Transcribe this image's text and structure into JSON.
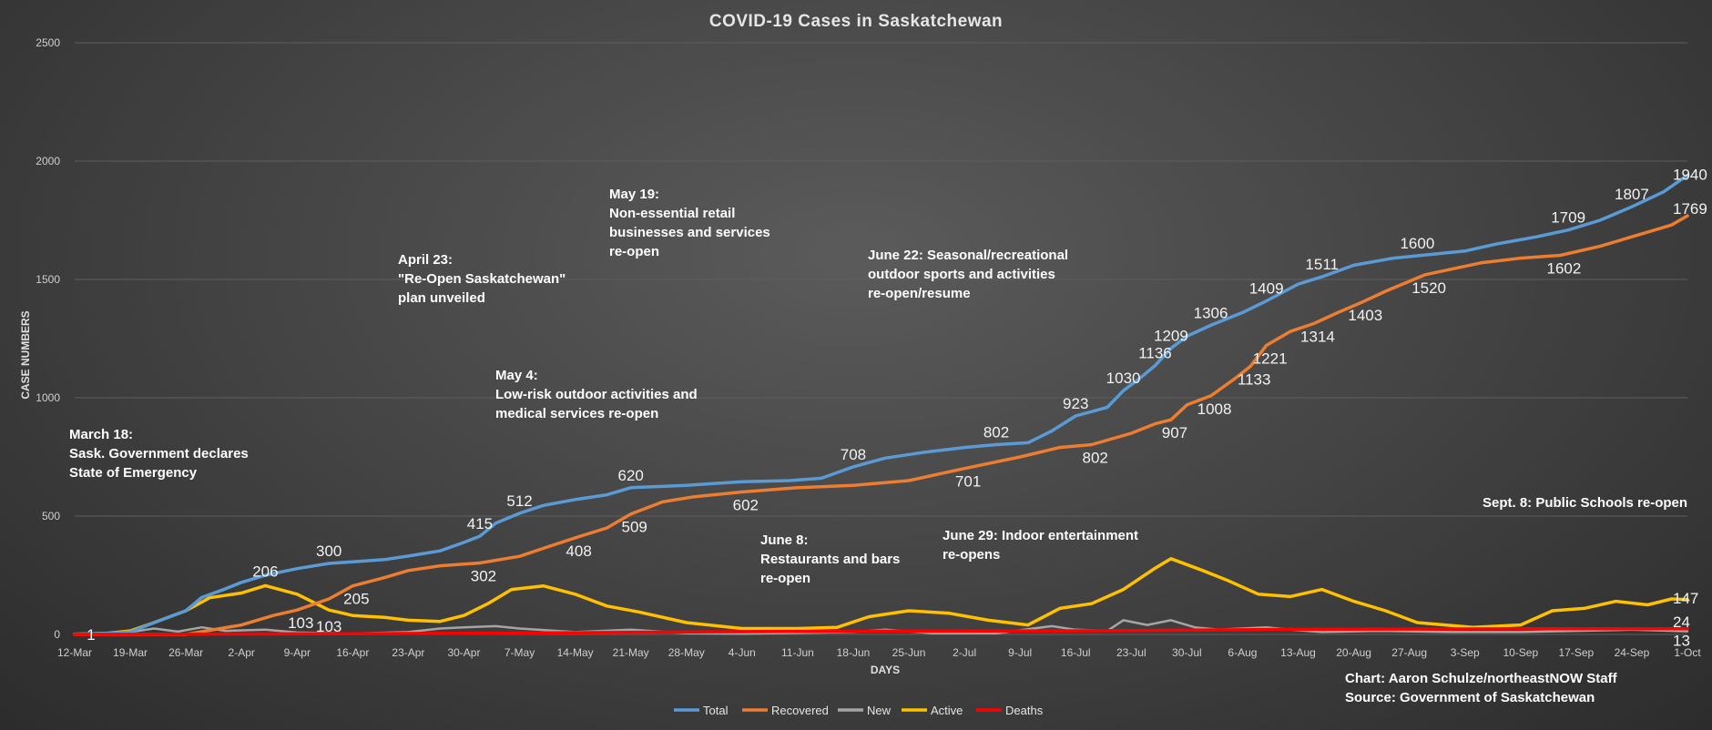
{
  "chart_data": {
    "type": "line",
    "title": "COVID-19 Cases in Saskatchewan",
    "xlabel": "DAYS",
    "ylabel": "CASE NUMBERS",
    "ylim": [
      0,
      2500
    ],
    "yticks": [
      0,
      500,
      1000,
      1500,
      2000,
      2500
    ],
    "xlim": [
      "2020-03-12",
      "2020-10-01"
    ],
    "xticks": [
      "12-Mar",
      "19-Mar",
      "26-Mar",
      "2-Apr",
      "9-Apr",
      "16-Apr",
      "23-Apr",
      "30-Apr",
      "7-May",
      "14-May",
      "21-May",
      "28-May",
      "4-Jun",
      "11-Jun",
      "18-Jun",
      "25-Jun",
      "2-Jul",
      "9-Jul",
      "16-Jul",
      "23-Jul",
      "30-Jul",
      "6-Aug",
      "13-Aug",
      "20-Aug",
      "27-Aug",
      "3-Sep",
      "10-Sep",
      "17-Sep",
      "24-Sep",
      "1-Oct"
    ],
    "grid": true,
    "legend_position": "bottom",
    "series": [
      {
        "name": "Total",
        "color": "#5b9bd5",
        "points": [
          [
            "2020-03-12",
            1
          ],
          [
            "2020-03-16",
            5
          ],
          [
            "2020-03-19",
            10
          ],
          [
            "2020-03-22",
            50
          ],
          [
            "2020-03-26",
            100
          ],
          [
            "2020-03-28",
            156
          ],
          [
            "2020-03-31",
            193
          ],
          [
            "2020-04-02",
            220
          ],
          [
            "2020-04-05",
            250
          ],
          [
            "2020-04-09",
            278
          ],
          [
            "2020-04-13",
            300
          ],
          [
            "2020-04-16",
            307
          ],
          [
            "2020-04-20",
            316
          ],
          [
            "2020-04-23",
            331
          ],
          [
            "2020-04-27",
            353
          ],
          [
            "2020-04-30",
            389
          ],
          [
            "2020-05-02",
            415
          ],
          [
            "2020-05-04",
            470
          ],
          [
            "2020-05-07",
            512
          ],
          [
            "2020-05-10",
            545
          ],
          [
            "2020-05-14",
            570
          ],
          [
            "2020-05-18",
            590
          ],
          [
            "2020-05-21",
            620
          ],
          [
            "2020-05-28",
            630
          ],
          [
            "2020-06-04",
            645
          ],
          [
            "2020-06-10",
            650
          ],
          [
            "2020-06-14",
            660
          ],
          [
            "2020-06-18",
            708
          ],
          [
            "2020-06-22",
            745
          ],
          [
            "2020-06-27",
            770
          ],
          [
            "2020-07-02",
            790
          ],
          [
            "2020-07-06",
            802
          ],
          [
            "2020-07-10",
            810
          ],
          [
            "2020-07-13",
            860
          ],
          [
            "2020-07-16",
            923
          ],
          [
            "2020-07-20",
            960
          ],
          [
            "2020-07-22",
            1030
          ],
          [
            "2020-07-24",
            1080
          ],
          [
            "2020-07-26",
            1136
          ],
          [
            "2020-07-28",
            1209
          ],
          [
            "2020-07-30",
            1260
          ],
          [
            "2020-08-02",
            1306
          ],
          [
            "2020-08-06",
            1360
          ],
          [
            "2020-08-09",
            1409
          ],
          [
            "2020-08-13",
            1480
          ],
          [
            "2020-08-16",
            1511
          ],
          [
            "2020-08-20",
            1560
          ],
          [
            "2020-08-25",
            1590
          ],
          [
            "2020-08-28",
            1600
          ],
          [
            "2020-09-03",
            1620
          ],
          [
            "2020-09-07",
            1650
          ],
          [
            "2020-09-12",
            1680
          ],
          [
            "2020-09-16",
            1709
          ],
          [
            "2020-09-20",
            1750
          ],
          [
            "2020-09-24",
            1807
          ],
          [
            "2020-09-28",
            1870
          ],
          [
            "2020-10-01",
            1940
          ]
        ],
        "labels": [
          [
            "2020-03-12",
            1
          ],
          [
            "2020-04-13",
            300
          ],
          [
            "2020-05-02",
            415
          ],
          [
            "2020-05-07",
            512
          ],
          [
            "2020-05-21",
            620
          ],
          [
            "2020-06-18",
            708
          ],
          [
            "2020-07-06",
            802
          ],
          [
            "2020-07-16",
            923
          ],
          [
            "2020-07-22",
            1030
          ],
          [
            "2020-07-26",
            1136
          ],
          [
            "2020-07-28",
            1209
          ],
          [
            "2020-08-02",
            1306
          ],
          [
            "2020-08-09",
            1409
          ],
          [
            "2020-08-16",
            1511
          ],
          [
            "2020-08-28",
            1600
          ],
          [
            "2020-09-16",
            1709
          ],
          [
            "2020-09-24",
            1807
          ],
          [
            "2020-10-01",
            1940
          ]
        ]
      },
      {
        "name": "Recovered",
        "color": "#ed7d31",
        "points": [
          [
            "2020-03-12",
            0
          ],
          [
            "2020-03-26",
            0
          ],
          [
            "2020-04-02",
            40
          ],
          [
            "2020-04-06",
            80
          ],
          [
            "2020-04-09",
            103
          ],
          [
            "2020-04-13",
            150
          ],
          [
            "2020-04-16",
            205
          ],
          [
            "2020-04-20",
            240
          ],
          [
            "2020-04-23",
            270
          ],
          [
            "2020-04-27",
            290
          ],
          [
            "2020-05-02",
            302
          ],
          [
            "2020-05-07",
            330
          ],
          [
            "2020-05-11",
            375
          ],
          [
            "2020-05-14",
            408
          ],
          [
            "2020-05-18",
            450
          ],
          [
            "2020-05-21",
            509
          ],
          [
            "2020-05-25",
            560
          ],
          [
            "2020-05-29",
            582
          ],
          [
            "2020-06-04",
            602
          ],
          [
            "2020-06-11",
            620
          ],
          [
            "2020-06-18",
            630
          ],
          [
            "2020-06-25",
            650
          ],
          [
            "2020-07-02",
            701
          ],
          [
            "2020-07-09",
            750
          ],
          [
            "2020-07-14",
            790
          ],
          [
            "2020-07-18",
            802
          ],
          [
            "2020-07-23",
            850
          ],
          [
            "2020-07-26",
            890
          ],
          [
            "2020-07-28",
            907
          ],
          [
            "2020-07-30",
            970
          ],
          [
            "2020-08-02",
            1008
          ],
          [
            "2020-08-05",
            1080
          ],
          [
            "2020-08-07",
            1133
          ],
          [
            "2020-08-09",
            1221
          ],
          [
            "2020-08-12",
            1280
          ],
          [
            "2020-08-15",
            1314
          ],
          [
            "2020-08-18",
            1360
          ],
          [
            "2020-08-21",
            1403
          ],
          [
            "2020-08-24",
            1450
          ],
          [
            "2020-08-29",
            1520
          ],
          [
            "2020-09-05",
            1570
          ],
          [
            "2020-09-10",
            1590
          ],
          [
            "2020-09-15",
            1602
          ],
          [
            "2020-09-20",
            1640
          ],
          [
            "2020-09-25",
            1690
          ],
          [
            "2020-09-29",
            1730
          ],
          [
            "2020-10-01",
            1769
          ]
        ],
        "labels": [
          [
            "2020-04-09",
            103
          ],
          [
            "2020-04-16",
            205
          ],
          [
            "2020-05-02",
            302
          ],
          [
            "2020-05-14",
            408
          ],
          [
            "2020-05-21",
            509
          ],
          [
            "2020-06-04",
            602
          ],
          [
            "2020-07-02",
            701
          ],
          [
            "2020-07-18",
            802
          ],
          [
            "2020-07-28",
            907
          ],
          [
            "2020-08-02",
            1008
          ],
          [
            "2020-08-07",
            1133
          ],
          [
            "2020-08-09",
            1221
          ],
          [
            "2020-08-15",
            1314
          ],
          [
            "2020-08-21",
            1403
          ],
          [
            "2020-08-29",
            1520
          ],
          [
            "2020-09-15",
            1602
          ],
          [
            "2020-10-01",
            1769
          ]
        ]
      },
      {
        "name": "New",
        "color": "#a5a5a5",
        "points": [
          [
            "2020-03-12",
            1
          ],
          [
            "2020-03-18",
            5
          ],
          [
            "2020-03-22",
            25
          ],
          [
            "2020-03-25",
            12
          ],
          [
            "2020-03-28",
            30
          ],
          [
            "2020-03-31",
            15
          ],
          [
            "2020-04-05",
            20
          ],
          [
            "2020-04-09",
            8
          ],
          [
            "2020-04-16",
            4
          ],
          [
            "2020-04-23",
            10
          ],
          [
            "2020-04-27",
            25
          ],
          [
            "2020-04-30",
            30
          ],
          [
            "2020-05-04",
            35
          ],
          [
            "2020-05-07",
            25
          ],
          [
            "2020-05-14",
            10
          ],
          [
            "2020-05-21",
            20
          ],
          [
            "2020-05-28",
            5
          ],
          [
            "2020-06-04",
            3
          ],
          [
            "2020-06-18",
            10
          ],
          [
            "2020-06-22",
            20
          ],
          [
            "2020-06-28",
            5
          ],
          [
            "2020-07-06",
            5
          ],
          [
            "2020-07-13",
            35
          ],
          [
            "2020-07-16",
            20
          ],
          [
            "2020-07-20",
            15
          ],
          [
            "2020-07-22",
            60
          ],
          [
            "2020-07-25",
            40
          ],
          [
            "2020-07-28",
            60
          ],
          [
            "2020-07-31",
            30
          ],
          [
            "2020-08-03",
            20
          ],
          [
            "2020-08-09",
            30
          ],
          [
            "2020-08-12",
            20
          ],
          [
            "2020-08-16",
            10
          ],
          [
            "2020-08-23",
            15
          ],
          [
            "2020-09-01",
            10
          ],
          [
            "2020-09-10",
            10
          ],
          [
            "2020-09-17",
            15
          ],
          [
            "2020-09-24",
            20
          ],
          [
            "2020-10-01",
            13
          ]
        ],
        "labels": [
          [
            "2020-10-01",
            13
          ]
        ]
      },
      {
        "name": "Active",
        "color": "#ffc000",
        "points": [
          [
            "2020-03-12",
            1
          ],
          [
            "2020-03-16",
            5
          ],
          [
            "2020-03-19",
            15
          ],
          [
            "2020-03-22",
            50
          ],
          [
            "2020-03-26",
            100
          ],
          [
            "2020-03-29",
            155
          ],
          [
            "2020-04-02",
            175
          ],
          [
            "2020-04-05",
            206
          ],
          [
            "2020-04-09",
            170
          ],
          [
            "2020-04-13",
            103
          ],
          [
            "2020-04-16",
            80
          ],
          [
            "2020-04-20",
            72
          ],
          [
            "2020-04-23",
            60
          ],
          [
            "2020-04-27",
            55
          ],
          [
            "2020-04-30",
            80
          ],
          [
            "2020-05-03",
            130
          ],
          [
            "2020-05-06",
            190
          ],
          [
            "2020-05-10",
            205
          ],
          [
            "2020-05-14",
            170
          ],
          [
            "2020-05-18",
            120
          ],
          [
            "2020-05-22",
            95
          ],
          [
            "2020-05-28",
            50
          ],
          [
            "2020-06-04",
            25
          ],
          [
            "2020-06-11",
            25
          ],
          [
            "2020-06-16",
            30
          ],
          [
            "2020-06-20",
            75
          ],
          [
            "2020-06-25",
            100
          ],
          [
            "2020-06-30",
            90
          ],
          [
            "2020-07-05",
            60
          ],
          [
            "2020-07-10",
            40
          ],
          [
            "2020-07-14",
            110
          ],
          [
            "2020-07-18",
            130
          ],
          [
            "2020-07-22",
            190
          ],
          [
            "2020-07-26",
            280
          ],
          [
            "2020-07-28",
            320
          ],
          [
            "2020-08-01",
            270
          ],
          [
            "2020-08-04",
            230
          ],
          [
            "2020-08-08",
            170
          ],
          [
            "2020-08-12",
            160
          ],
          [
            "2020-08-16",
            190
          ],
          [
            "2020-08-20",
            140
          ],
          [
            "2020-08-24",
            100
          ],
          [
            "2020-08-28",
            50
          ],
          [
            "2020-09-04",
            30
          ],
          [
            "2020-09-10",
            40
          ],
          [
            "2020-09-14",
            100
          ],
          [
            "2020-09-18",
            110
          ],
          [
            "2020-09-22",
            140
          ],
          [
            "2020-09-26",
            125
          ],
          [
            "2020-09-29",
            150
          ],
          [
            "2020-10-01",
            147
          ]
        ],
        "labels": [
          [
            "2020-04-05",
            206
          ],
          [
            "2020-04-13",
            103
          ],
          [
            "2020-10-01",
            147
          ]
        ]
      },
      {
        "name": "Deaths",
        "color": "#ff0000",
        "points": [
          [
            "2020-03-12",
            0
          ],
          [
            "2020-03-26",
            1
          ],
          [
            "2020-04-15",
            3
          ],
          [
            "2020-05-10",
            6
          ],
          [
            "2020-06-10",
            13
          ],
          [
            "2020-07-15",
            15
          ],
          [
            "2020-08-15",
            22
          ],
          [
            "2020-09-15",
            24
          ],
          [
            "2020-10-01",
            24
          ]
        ],
        "labels": [
          [
            "2020-10-01",
            24
          ]
        ]
      }
    ],
    "annotations": [
      {
        "lines": [
          "March 18:",
          "Sask. Government declares",
          "State of Emergency"
        ]
      },
      {
        "lines": [
          "April 23:",
          "\"Re-Open Saskatchewan\"",
          "plan unveiled"
        ]
      },
      {
        "lines": [
          "May 4:",
          "Low-risk outdoor activities and",
          "medical services re-open"
        ]
      },
      {
        "lines": [
          "May 19:",
          "Non-essential retail",
          "businesses and services",
          "re-open"
        ]
      },
      {
        "lines": [
          "June 8:",
          "Restaurants and bars",
          "re-open"
        ]
      },
      {
        "lines": [
          "June 22: Seasonal/recreational",
          "outdoor sports and activities",
          "re-open/resume"
        ]
      },
      {
        "lines": [
          "June 29: Indoor entertainment",
          "re-opens"
        ]
      },
      {
        "lines": [
          "Sept. 8: Public Schools re-open"
        ]
      }
    ],
    "credits": [
      "Chart: Aaron Schulze/northeastNOW Staff",
      "Source: Government of Saskatchewan"
    ]
  }
}
